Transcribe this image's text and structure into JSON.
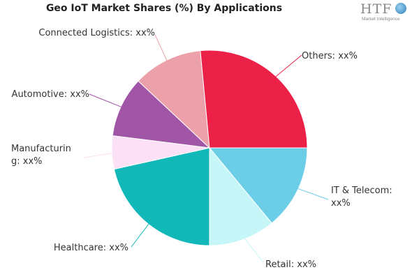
{
  "title": "Geo IoT Market Shares (%) By Applications",
  "logo": {
    "text": "HTF",
    "subtitle": "Market Intelligence"
  },
  "chart_data": {
    "type": "pie",
    "title": "Geo IoT Market Shares (%) By Applications",
    "start_angle_deg": 0,
    "direction": "clockwise",
    "slices": [
      {
        "name": "IT & Telecom",
        "value": 14,
        "label_lines": [
          "IT & Telecom:",
          "xx%"
        ],
        "color": "#6bcde6"
      },
      {
        "name": "Retail",
        "value": 11,
        "label_lines": [
          "Retail: xx%"
        ],
        "color": "#c6f6f8"
      },
      {
        "name": "Healthcare",
        "value": 21.5,
        "label_lines": [
          "Healthcare: xx%"
        ],
        "color": "#12b8b8"
      },
      {
        "name": "Manufacturing",
        "value": 5.5,
        "label_lines": [
          "Manufacturin",
          "g: xx%"
        ],
        "color": "#fbe0f6"
      },
      {
        "name": "Automotive",
        "value": 10,
        "label_lines": [
          "Automotive: xx%"
        ],
        "color": "#a155a6"
      },
      {
        "name": "Connected Logistics",
        "value": 11.5,
        "label_lines": [
          "Connected Logistics: xx%"
        ],
        "color": "#eba0aa"
      },
      {
        "name": "Others",
        "value": 26.5,
        "label_lines": [
          "Others: xx%"
        ],
        "color": "#ec2148"
      }
    ]
  }
}
